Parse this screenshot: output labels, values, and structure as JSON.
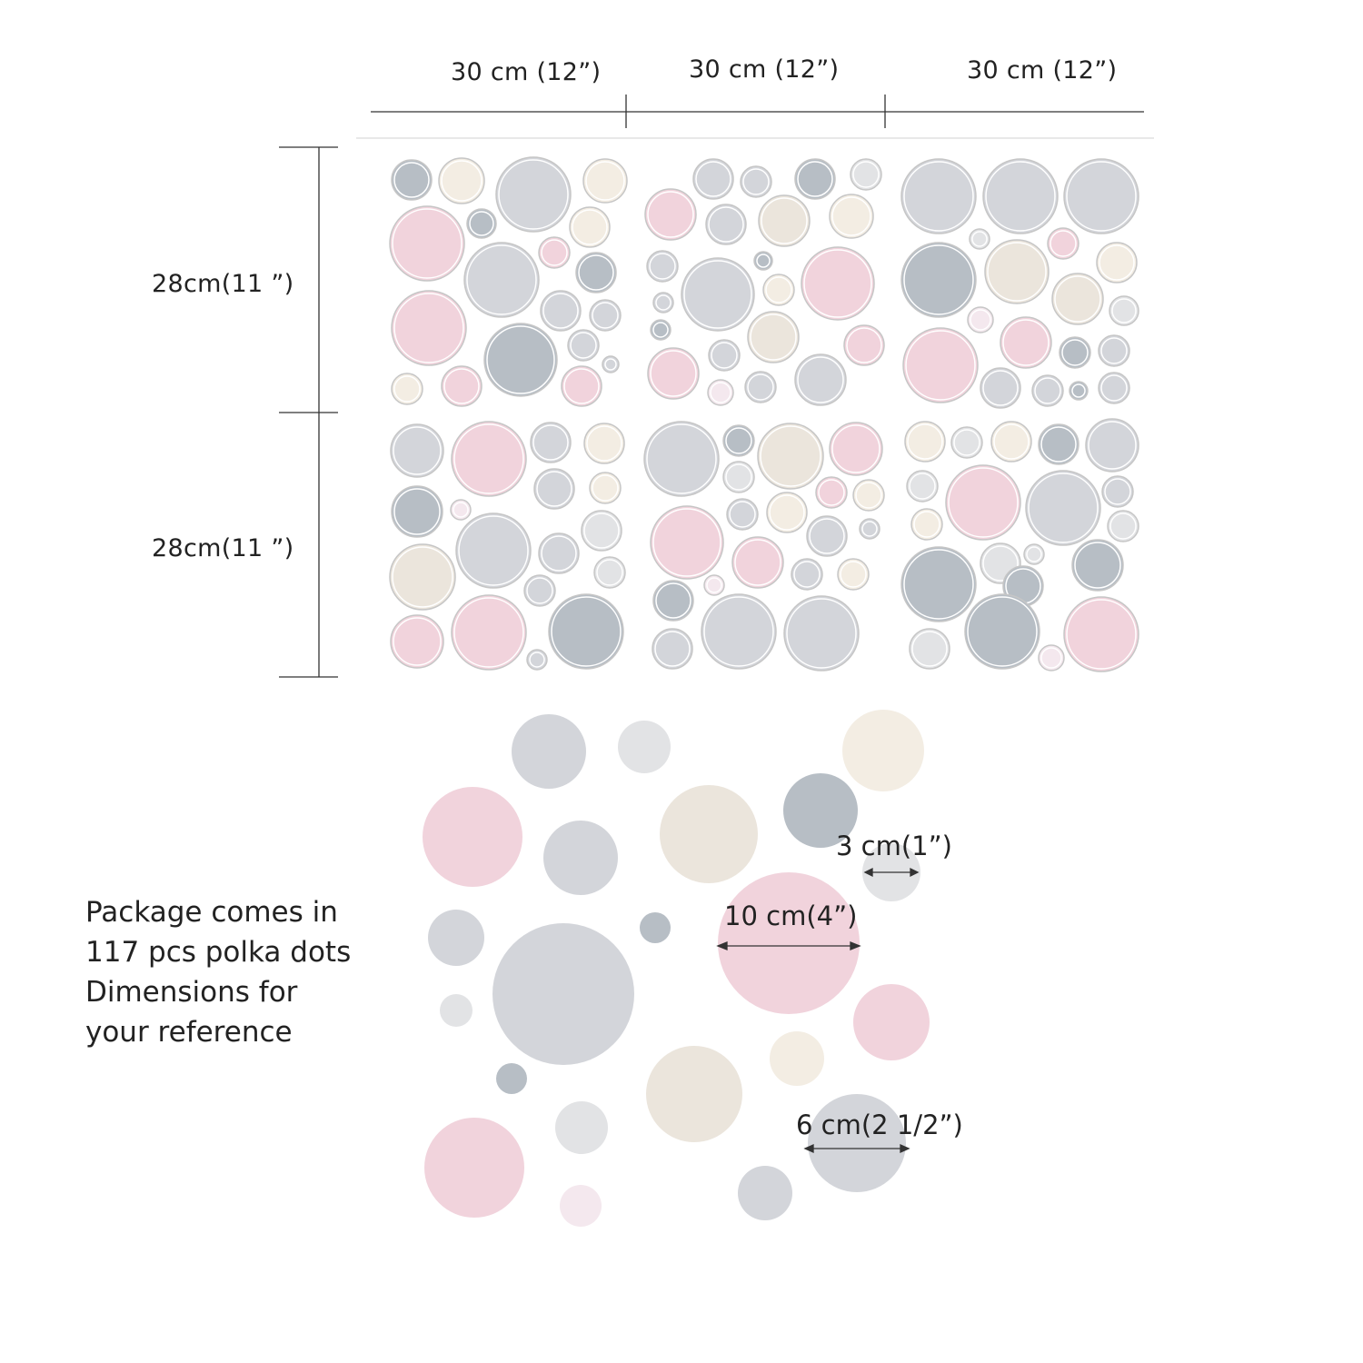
{
  "dimensions": {
    "widths": [
      "30 cm (12”)",
      "30 cm (12”)",
      "30 cm (12”)"
    ],
    "heights": [
      "28cm(11 ”)",
      "28cm(11 ”)"
    ]
  },
  "reference": {
    "size_small": "3 cm(1”)",
    "size_large": "10 cm(4”)",
    "size_medium": "6 cm(2 1/2”)"
  },
  "note": {
    "lines": [
      "Package comes in",
      "117 pcs polka dots",
      "Dimensions for",
      "your reference"
    ]
  },
  "colors": {
    "pink": "#f1d3dc",
    "light_gray": "#d3d5da",
    "blue_gray": "#b7bec5",
    "beige": "#ebe5dc",
    "cream": "#f3ede3",
    "pale_gray": "#e2e3e5",
    "very_light_pink": "#f4e8ee",
    "outline": "#c6c6c6",
    "line": "#333333"
  }
}
